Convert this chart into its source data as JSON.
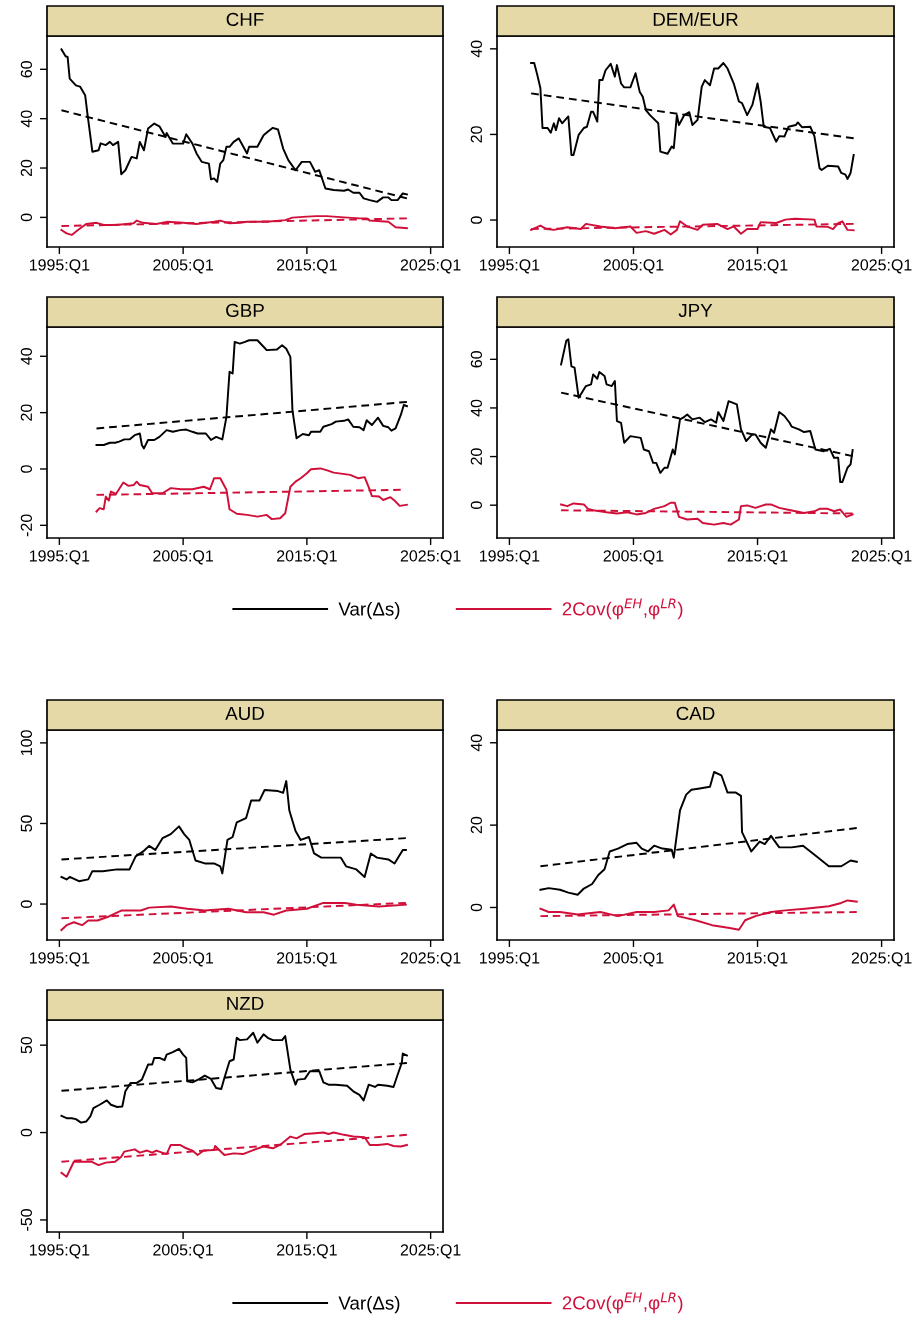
{
  "chart_data": [
    {
      "type": "line",
      "title": "CHF",
      "xlim": [
        "1994-01",
        "2026-01"
      ],
      "xticks": [
        {
          "value": "1995-01",
          "label": "1995:Q1"
        },
        {
          "value": "2005-01",
          "label": "2005:Q1"
        },
        {
          "value": "2015-01",
          "label": "2015:Q1"
        },
        {
          "value": "2025-01",
          "label": "2025:Q1"
        }
      ],
      "ylim": [
        -12,
        73.5
      ],
      "yticks": [
        0,
        20,
        40,
        60
      ],
      "series": [
        {
          "color": "#000000",
          "x": [
            "1995-03",
            "1995-07",
            "1995-09",
            "1995-11",
            "1996-05",
            "1996-09",
            "1997-02",
            "1997-04",
            "1997-09",
            "1998-03",
            "1998-05",
            "1998-10",
            "1999-02",
            "1999-05",
            "1999-10",
            "2000-01",
            "2000-05",
            "2000-11",
            "2001-04",
            "2001-07",
            "2001-11",
            "2002-03",
            "2002-09",
            "2003-02",
            "2003-08",
            "2003-09",
            "2004-03",
            "2005-01",
            "2005-04",
            "2005-10",
            "2006-02",
            "2006-07",
            "2007-02",
            "2007-04",
            "2007-07",
            "2007-10",
            "2008-01",
            "2008-04",
            "2008-07",
            "2008-10",
            "2009-02",
            "2009-07",
            "2010-03",
            "2010-05",
            "2011-01",
            "2011-07",
            "2011-11",
            "2012-04",
            "2012-09",
            "2013-02",
            "2013-07",
            "2014-02",
            "2014-08",
            "2015-04",
            "2015-09",
            "2016-01",
            "2016-07",
            "2017-03",
            "2018-01",
            "2018-05",
            "2018-10",
            "2019-04",
            "2019-08",
            "2020-02",
            "2020-09",
            "2021-03",
            "2021-08",
            "2021-11",
            "2022-05",
            "2022-10",
            "2023-02"
          ],
          "values": [
            68.1,
            65.3,
            65,
            56.2,
            53.5,
            53,
            49.5,
            42.7,
            26.6,
            27.2,
            30,
            29.3,
            30.6,
            29.3,
            30.6,
            17.5,
            19.1,
            24.5,
            23.9,
            30.6,
            27.2,
            36,
            38,
            36.9,
            32.6,
            34.2,
            29.9,
            29.9,
            33.7,
            29.9,
            25.9,
            22.5,
            21.8,
            15.4,
            15.8,
            14.4,
            21.8,
            23.2,
            28.6,
            28.6,
            30.6,
            32,
            25.9,
            28.6,
            28.6,
            33.3,
            34.7,
            36.3,
            35.6,
            27.9,
            23.2,
            19.1,
            22.5,
            22.5,
            18.5,
            19.1,
            11.7,
            11.1,
            10.8,
            11.3,
            10,
            10,
            7.7,
            7,
            6.3,
            8.1,
            8.1,
            7,
            7,
            9.7,
            9.3
          ]
        },
        {
          "color": "#d0103a",
          "x": [
            "1995-03",
            "1995-08",
            "1996-01",
            "1996-07",
            "1997-03",
            "1998-01",
            "1998-08",
            "1999-08",
            "2001-01",
            "2001-04",
            "2001-10",
            "2002-11",
            "2003-09",
            "2005-01",
            "2006-02",
            "2007-07",
            "2008-01",
            "2008-10",
            "2009-08",
            "2010-03",
            "2011-10",
            "2013-04",
            "2013-11",
            "2015-01",
            "2015-10",
            "2016-08",
            "2018-01",
            "2019-04",
            "2019-11",
            "2020-02",
            "2021-08",
            "2022-03",
            "2023-02"
          ],
          "values": [
            -5.1,
            -6.5,
            -7.1,
            -5.1,
            -2.7,
            -2.2,
            -3.1,
            -3.1,
            -2.4,
            -1.3,
            -2.2,
            -2.7,
            -1.8,
            -2.2,
            -2.7,
            -1.8,
            -1.3,
            -2.4,
            -2.2,
            -1.8,
            -1.8,
            -1.1,
            -0.1,
            0.3,
            0.5,
            0.5,
            0,
            -0.4,
            -0.4,
            -1.3,
            -1.8,
            -4,
            -4.4
          ]
        },
        {
          "color": "#000000",
          "line_style": "dashed",
          "x": [
            "1995-03",
            "2023-02"
          ],
          "values": [
            43.4,
            7.7
          ]
        },
        {
          "color": "#d0103a",
          "line_style": "dashed",
          "x": [
            "1995-03",
            "2023-02"
          ],
          "values": [
            -3.5,
            -0.4
          ]
        }
      ]
    },
    {
      "type": "line",
      "title": "DEM/EUR",
      "xlim": [
        "1994-01",
        "2026-01"
      ],
      "xticks": [
        {
          "value": "1995-01",
          "label": "1995:Q1"
        },
        {
          "value": "2005-01",
          "label": "2005:Q1"
        },
        {
          "value": "2015-01",
          "label": "2015:Q1"
        },
        {
          "value": "2025-01",
          "label": "2025:Q1"
        }
      ],
      "ylim": [
        -6.3,
        43
      ],
      "yticks": [
        0,
        20,
        40
      ],
      "series": [
        {
          "color": "#000000",
          "x": [
            "1996-10",
            "1997-01",
            "1997-04",
            "1997-07",
            "1997-09",
            "1998-02",
            "1998-05",
            "1998-08",
            "1998-10",
            "1999-01",
            "1999-04",
            "1999-10",
            "2000-01",
            "2000-03",
            "2000-08",
            "2001-01",
            "2001-04",
            "2001-08",
            "2001-10",
            "2002-02",
            "2002-04",
            "2002-07",
            "2002-10",
            "2003-03",
            "2003-07",
            "2003-09",
            "2004-01",
            "2004-04",
            "2004-10",
            "2005-03",
            "2005-07",
            "2005-10",
            "2006-01",
            "2006-05",
            "2007-01",
            "2007-03",
            "2007-10",
            "2008-02",
            "2008-04",
            "2008-07",
            "2008-09",
            "2009-02",
            "2009-07",
            "2009-10",
            "2010-03",
            "2010-07",
            "2010-10",
            "2011-03",
            "2011-07",
            "2011-11",
            "2012-04",
            "2012-08",
            "2013-02",
            "2013-07",
            "2013-10",
            "2014-03",
            "2014-08",
            "2015-01",
            "2015-04",
            "2015-07",
            "2016-01",
            "2016-07",
            "2016-10",
            "2017-03",
            "2017-07",
            "2018-02",
            "2018-04",
            "2018-08",
            "2019-04",
            "2019-08",
            "2020-01",
            "2020-03",
            "2020-09",
            "2021-07",
            "2021-10",
            "2022-02",
            "2022-04",
            "2022-07",
            "2022-10"
          ],
          "values": [
            36.7,
            36.7,
            33.9,
            30.8,
            21.5,
            21.5,
            20.4,
            22.6,
            21,
            23.8,
            22.6,
            24.2,
            15.2,
            15.2,
            19.9,
            21.5,
            21.8,
            25.3,
            25.3,
            23,
            32.7,
            32.7,
            35,
            36.5,
            33.5,
            36.2,
            31.9,
            31,
            31,
            34.3,
            30,
            28.8,
            25.7,
            24.5,
            22.6,
            16,
            15.5,
            17.2,
            16.8,
            24.5,
            22.2,
            24.5,
            25.2,
            22.2,
            23.4,
            31.1,
            32.7,
            31.5,
            35.4,
            35.4,
            36.7,
            35.4,
            31.9,
            27.7,
            27.3,
            24.5,
            26.9,
            31.9,
            27.7,
            21.8,
            21.5,
            18.3,
            19.6,
            19.5,
            21.8,
            22.2,
            22.8,
            21.7,
            21.8,
            19.6,
            12.1,
            11.7,
            12.7,
            12.5,
            11,
            10.6,
            9.6,
            11,
            15.2
          ]
        },
        {
          "color": "#d0103a",
          "x": [
            "1996-10",
            "1997-07",
            "1998-01",
            "1998-08",
            "1999-09",
            "2000-10",
            "2001-03",
            "2002-05",
            "2003-07",
            "2004-10",
            "2005-04",
            "2006-01",
            "2006-09",
            "2007-07",
            "2008-01",
            "2008-07",
            "2008-10",
            "2009-05",
            "2010-03",
            "2010-08",
            "2011-10",
            "2012-08",
            "2013-02",
            "2013-09",
            "2014-03",
            "2015-01",
            "2015-04",
            "2016-07",
            "2017-04",
            "2018-01",
            "2019-08",
            "2019-10",
            "2020-09",
            "2021-02",
            "2021-07",
            "2021-11",
            "2022-04",
            "2022-10"
          ],
          "values": [
            -2.3,
            -1.3,
            -2.1,
            -2.3,
            -1.7,
            -2.1,
            -0.9,
            -1.5,
            -1.9,
            -1.5,
            -3,
            -2.6,
            -3.2,
            -2.3,
            -3.4,
            -2.3,
            -0.3,
            -1.5,
            -2.3,
            -1.1,
            -0.9,
            -2.1,
            -1.5,
            -3.2,
            -2.1,
            -2.1,
            -0.5,
            -0.7,
            0.1,
            0.3,
            0.1,
            -1.5,
            -1.6,
            -2.1,
            -0.7,
            -0.3,
            -2.3,
            -2.4
          ]
        },
        {
          "color": "#000000",
          "line_style": "dashed",
          "x": [
            "1996-10",
            "2022-10"
          ],
          "values": [
            29.6,
            19.1
          ]
        },
        {
          "color": "#d0103a",
          "line_style": "dashed",
          "x": [
            "1996-10",
            "2022-10"
          ],
          "values": [
            -2.1,
            -0.9
          ]
        }
      ]
    },
    {
      "type": "line",
      "title": "GBP",
      "xlim": [
        "1994-01",
        "2026-01"
      ],
      "xticks": [
        {
          "value": "1995-01",
          "label": "1995:Q1"
        },
        {
          "value": "2005-01",
          "label": "2005:Q1"
        },
        {
          "value": "2015-01",
          "label": "2015:Q1"
        },
        {
          "value": "2025-01",
          "label": "2025:Q1"
        }
      ],
      "ylim": [
        -24.5,
        50.4
      ],
      "yticks": [
        -20,
        0,
        20,
        40
      ],
      "series": [
        {
          "color": "#000000",
          "x": [
            "1998-01",
            "1998-08",
            "1999-02",
            "1999-07",
            "1999-11",
            "2000-04",
            "2000-09",
            "2001-02",
            "2001-07",
            "2001-09",
            "2001-11",
            "2002-03",
            "2002-09",
            "2003-02",
            "2003-09",
            "2004-03",
            "2004-10",
            "2005-04",
            "2005-10",
            "2006-03",
            "2006-11",
            "2007-04",
            "2007-09",
            "2008-03",
            "2008-07",
            "2008-10",
            "2009-01",
            "2009-03",
            "2009-08",
            "2010-01",
            "2010-05",
            "2011-01",
            "2011-07",
            "2011-10",
            "2012-08",
            "2013-01",
            "2013-05",
            "2013-09",
            "2013-11",
            "2014-03",
            "2014-09",
            "2015-03",
            "2015-05",
            "2016-02",
            "2016-05",
            "2017-01",
            "2017-05",
            "2018-01",
            "2018-05",
            "2018-10",
            "2019-04",
            "2019-08",
            "2019-11",
            "2020-04",
            "2020-10",
            "2021-03",
            "2021-08",
            "2021-11",
            "2022-03",
            "2022-08",
            "2022-11",
            "2023-02"
          ],
          "values": [
            8.5,
            8.5,
            9.3,
            9.3,
            9.7,
            10.5,
            10.5,
            12,
            12.6,
            8.5,
            7.3,
            10.3,
            10.3,
            11.4,
            13.8,
            13.2,
            13.8,
            14,
            13.2,
            12.6,
            12.6,
            10.3,
            11.4,
            10.5,
            18.5,
            34.5,
            33.9,
            45.1,
            44.5,
            45.1,
            45.7,
            45.7,
            43.4,
            42.2,
            42.4,
            43.9,
            42.7,
            39.8,
            20.9,
            10.9,
            12.4,
            12,
            13.2,
            13.2,
            15,
            15.9,
            16.8,
            17.1,
            17.6,
            15,
            14.8,
            13.8,
            17.3,
            15.6,
            18.2,
            15.3,
            14.8,
            13.6,
            14.4,
            19.1,
            22.7,
            22.3
          ]
        },
        {
          "color": "#d0103a",
          "x": [
            "1998-01",
            "1998-04",
            "1998-08",
            "1998-10",
            "1999-01",
            "1999-03",
            "1999-08",
            "2000-03",
            "2000-08",
            "2001-01",
            "2001-04",
            "2001-07",
            "2002-03",
            "2002-07",
            "2003-05",
            "2004-01",
            "2004-11",
            "2005-10",
            "2006-09",
            "2007-03",
            "2007-07",
            "2008-01",
            "2008-07",
            "2008-10",
            "2009-05",
            "2010-03",
            "2011-01",
            "2011-10",
            "2012-03",
            "2012-11",
            "2013-04",
            "2013-09",
            "2014-02",
            "2014-07",
            "2015-01",
            "2015-05",
            "2016-02",
            "2016-08",
            "2017-03",
            "2018-07",
            "2019-03",
            "2019-09",
            "2020-02",
            "2020-04",
            "2020-11",
            "2021-03",
            "2021-10",
            "2022-02",
            "2022-07",
            "2023-02"
          ],
          "values": [
            -15.1,
            -13.9,
            -14.3,
            -9.8,
            -11.2,
            -8,
            -8.8,
            -4.8,
            -6,
            -5.7,
            -4.5,
            -5.7,
            -6.3,
            -8.6,
            -8.6,
            -6.8,
            -7.2,
            -7.2,
            -6.3,
            -7.2,
            -3.3,
            -3.3,
            -7.4,
            -14.3,
            -15.9,
            -16.3,
            -16.9,
            -16.3,
            -17.8,
            -17.5,
            -15.7,
            -6.3,
            -4.5,
            -3.3,
            -1.5,
            -0.1,
            0.2,
            -0.4,
            -1.3,
            -2.1,
            -3.3,
            -2.9,
            -7.4,
            -9.6,
            -9.8,
            -11,
            -10,
            -11.2,
            -13.1,
            -12.7
          ]
        },
        {
          "color": "#000000",
          "line_style": "dashed",
          "x": [
            "1998-01",
            "2023-02"
          ],
          "values": [
            14.4,
            23.8
          ]
        },
        {
          "color": "#d0103a",
          "line_style": "dashed",
          "x": [
            "1998-01",
            "2022-08"
          ],
          "values": [
            -9.2,
            -7.4
          ]
        }
      ]
    },
    {
      "type": "line",
      "title": "JPY",
      "xlim": [
        "1994-01",
        "2026-01"
      ],
      "xticks": [
        {
          "value": "1995-01",
          "label": "1995:Q1"
        },
        {
          "value": "2005-01",
          "label": "2005:Q1"
        },
        {
          "value": "2015-01",
          "label": "2015:Q1"
        },
        {
          "value": "2025-01",
          "label": "2025:Q1"
        }
      ],
      "ylim": [
        -13.5,
        73.3
      ],
      "yticks": [
        0,
        20,
        40,
        60
      ],
      "legend": "bottom",
      "series": [
        {
          "name": "Var(Δs)",
          "color": "#000000",
          "x": [
            "1999-03",
            "1999-08",
            "1999-10",
            "2000-01",
            "2000-04",
            "2000-08",
            "2000-11",
            "2001-03",
            "2001-08",
            "2001-10",
            "2002-02",
            "2002-04",
            "2002-09",
            "2002-11",
            "2003-04",
            "2003-07",
            "2003-09",
            "2004-01",
            "2004-04",
            "2004-10",
            "2005-08",
            "2005-11",
            "2006-04",
            "2006-08",
            "2006-11",
            "2007-03",
            "2007-07",
            "2007-10",
            "2008-03",
            "2008-05",
            "2008-10",
            "2009-01",
            "2009-05",
            "2009-10",
            "2010-05",
            "2010-10",
            "2011-04",
            "2011-09",
            "2011-11",
            "2012-04",
            "2012-09",
            "2013-05",
            "2013-09",
            "2014-02",
            "2014-08",
            "2014-11",
            "2015-04",
            "2015-09",
            "2016-02",
            "2016-05",
            "2016-10",
            "2017-03",
            "2017-08",
            "2017-10",
            "2018-05",
            "2018-10",
            "2019-04",
            "2019-09",
            "2020-05",
            "2020-11",
            "2021-03",
            "2021-07",
            "2021-09",
            "2021-11",
            "2022-04",
            "2022-07",
            "2022-09"
          ],
          "values": [
            57.9,
            67.6,
            68.2,
            57.1,
            56.6,
            44.2,
            46.3,
            49,
            49.7,
            53.8,
            52,
            54.8,
            53.1,
            49.7,
            49,
            51.1,
            34.6,
            33.9,
            25.7,
            28.4,
            27.7,
            22.9,
            22.2,
            17.4,
            17.4,
            13.3,
            15.4,
            15.4,
            22.9,
            20.9,
            35.3,
            36,
            37.3,
            35.3,
            36,
            34.2,
            35.3,
            33.9,
            38.3,
            34.6,
            42.8,
            41.5,
            31.2,
            26.4,
            29.1,
            29.1,
            25.7,
            23.6,
            31.2,
            29.8,
            38.3,
            36.7,
            33.9,
            32.3,
            31.2,
            30.1,
            30.5,
            22.9,
            22.2,
            23.2,
            19.5,
            19.5,
            9.5,
            9.5,
            15.4,
            16.8,
            22.7
          ]
        },
        {
          "name": "2Cov(φ$^{EH}$,φ$^{LR}$)",
          "color": "#d0103a",
          "x": [
            "1999-03",
            "1999-09",
            "2000-03",
            "2001-01",
            "2001-05",
            "2001-10",
            "2002-11",
            "2003-09",
            "2004-07",
            "2005-04",
            "2006-01",
            "2006-09",
            "2007-07",
            "2008-01",
            "2008-05",
            "2008-09",
            "2009-05",
            "2010-03",
            "2010-08",
            "2011-07",
            "2012-04",
            "2012-11",
            "2013-07",
            "2013-09",
            "2014-03",
            "2014-11",
            "2015-09",
            "2016-02",
            "2016-10",
            "2017-09",
            "2018-10",
            "2019-08",
            "2020-01",
            "2020-09",
            "2021-03",
            "2021-09",
            "2022-03",
            "2022-09"
          ],
          "values": [
            0.3,
            -0.4,
            0.7,
            0.3,
            -1.5,
            -2.1,
            -2.9,
            -3.4,
            -2.9,
            -3.8,
            -3.2,
            -1.5,
            -0.4,
            1,
            1,
            -4.8,
            -5.9,
            -5.6,
            -7.3,
            -8,
            -7.3,
            -8,
            -5.9,
            -0.4,
            -0.1,
            -1.1,
            0.3,
            0.3,
            -1.1,
            -2.1,
            -3.2,
            -2.5,
            -1.5,
            -1.5,
            -2.5,
            -1.8,
            -4.8,
            -3.8
          ]
        },
        {
          "color": "#000000",
          "line_style": "dashed",
          "x": [
            "1999-03",
            "2022-09"
          ],
          "values": [
            46.3,
            20.2
          ]
        },
        {
          "color": "#d0103a",
          "line_style": "dashed",
          "x": [
            "1999-03",
            "2022-09"
          ],
          "values": [
            -2.1,
            -3.4
          ]
        }
      ]
    },
    {
      "type": "line",
      "title": "AUD",
      "xlim": [
        "1994-01",
        "2026-01"
      ],
      "xticks": [
        {
          "value": "1995-01",
          "label": "1995:Q1"
        },
        {
          "value": "2005-01",
          "label": "2005:Q1"
        },
        {
          "value": "2015-01",
          "label": "2015:Q1"
        },
        {
          "value": "2025-01",
          "label": "2025:Q1"
        }
      ],
      "ylim": [
        -22.3,
        108
      ],
      "yticks": [
        0,
        50,
        100
      ],
      "series": [
        {
          "color": "#000000",
          "x": [
            "1995-03",
            "1995-08",
            "1995-11",
            "1996-08",
            "1997-05",
            "1997-09",
            "1998-07",
            "1999-09",
            "2000-09",
            "2001-03",
            "2001-10",
            "2002-04",
            "2002-10",
            "2003-05",
            "2004-01",
            "2004-09",
            "2005-02",
            "2005-07",
            "2006-01",
            "2006-10",
            "2007-07",
            "2008-01",
            "2008-03",
            "2008-08",
            "2009-01",
            "2009-05",
            "2010-02",
            "2010-07",
            "2011-03",
            "2011-08",
            "2012-09",
            "2013-02",
            "2013-05",
            "2013-08",
            "2014-02",
            "2014-07",
            "2015-03",
            "2015-08",
            "2016-03",
            "2016-11",
            "2017-10",
            "2018-03",
            "2019-01",
            "2019-09",
            "2020-03",
            "2020-09",
            "2021-08",
            "2022-02",
            "2022-10",
            "2023-01"
          ],
          "values": [
            16.8,
            15.3,
            16.8,
            14.2,
            15.3,
            20.4,
            20.4,
            21.5,
            21.5,
            29.6,
            32.5,
            36.1,
            33.6,
            40.9,
            43.4,
            48.2,
            43.4,
            39.8,
            27,
            25.2,
            25.2,
            23.4,
            19,
            39.8,
            41.6,
            50.7,
            53.3,
            64.2,
            64.2,
            70.8,
            70.1,
            69,
            76.3,
            58,
            45.3,
            39.8,
            41.6,
            31.4,
            28.8,
            28.8,
            28.8,
            23.4,
            21.5,
            16.8,
            31.4,
            28.8,
            27.7,
            25.2,
            33.6,
            33.6
          ]
        },
        {
          "color": "#d0103a",
          "x": [
            "1995-03",
            "1995-08",
            "1996-03",
            "1996-11",
            "1997-05",
            "1998-02",
            "1999-01",
            "2000-01",
            "2001-08",
            "2002-04",
            "2004-01",
            "2005-05",
            "2006-10",
            "2008-09",
            "2010-02",
            "2011-07",
            "2012-05",
            "2013-05",
            "2015-01",
            "2016-05",
            "2018-02",
            "2019-01",
            "2020-11",
            "2023-01"
          ],
          "values": [
            -16.1,
            -13.1,
            -11.3,
            -13.1,
            -10.2,
            -10.2,
            -7.7,
            -4,
            -4,
            -2.2,
            -1.5,
            -2.9,
            -4,
            -2.9,
            -5.1,
            -5.1,
            -6.6,
            -4,
            -2.9,
            0.7,
            0.7,
            -0.4,
            -1.5,
            -0.4
          ]
        },
        {
          "color": "#000000",
          "line_style": "dashed",
          "x": [
            "1995-03",
            "2023-01"
          ],
          "values": [
            27.7,
            40.9
          ]
        },
        {
          "color": "#d0103a",
          "line_style": "dashed",
          "x": [
            "1995-03",
            "2023-01"
          ],
          "values": [
            -8.8,
            0.7
          ]
        }
      ]
    },
    {
      "type": "line",
      "title": "CAD",
      "xlim": [
        "1994-01",
        "2026-01"
      ],
      "xticks": [
        {
          "value": "1995-01",
          "label": "1995:Q1"
        },
        {
          "value": "2005-01",
          "label": "2005:Q1"
        },
        {
          "value": "2015-01",
          "label": "2015:Q1"
        },
        {
          "value": "2025-01",
          "label": "2025:Q1"
        }
      ],
      "ylim": [
        -7.9,
        43.1
      ],
      "yticks": [
        0,
        20,
        40
      ],
      "series": [
        {
          "color": "#000000",
          "x": [
            "1997-07",
            "1998-03",
            "1999-02",
            "1999-10",
            "2000-07",
            "2001-01",
            "2001-09",
            "2002-03",
            "2002-09",
            "2003-02",
            "2003-10",
            "2004-07",
            "2005-04",
            "2005-09",
            "2006-03",
            "2006-09",
            "2007-05",
            "2008-02",
            "2008-04",
            "2008-10",
            "2009-04",
            "2009-09",
            "2010-05",
            "2011-03",
            "2011-07",
            "2012-02",
            "2012-08",
            "2013-04",
            "2013-09",
            "2013-10",
            "2014-07",
            "2015-03",
            "2015-08",
            "2016-02",
            "2016-10",
            "2017-10",
            "2018-09",
            "2019-09",
            "2020-10",
            "2021-10",
            "2022-07",
            "2023-01"
          ],
          "values": [
            4.3,
            4.7,
            4.3,
            3.6,
            3.1,
            4.6,
            5.7,
            7.9,
            9.3,
            13.6,
            14.3,
            15.4,
            15.7,
            14.3,
            13.6,
            15,
            14.3,
            14,
            12.1,
            23.6,
            27.4,
            28.6,
            28.9,
            29.3,
            32.9,
            32.1,
            27.9,
            27.9,
            27.1,
            18.3,
            13.6,
            16,
            15.4,
            17.4,
            14.6,
            14.6,
            15,
            12.6,
            10,
            10,
            11.4,
            11.1
          ]
        },
        {
          "color": "#d0103a",
          "x": [
            "1997-07",
            "1998-03",
            "1999-02",
            "2000-07",
            "2002-05",
            "2003-10",
            "2005-04",
            "2006-09",
            "2007-11",
            "2008-04",
            "2008-08",
            "2010-01",
            "2011-05",
            "2012-10",
            "2013-07",
            "2014-01",
            "2014-11",
            "2016-02",
            "2017-04",
            "2018-11",
            "2020-10",
            "2021-10",
            "2022-04",
            "2023-01"
          ],
          "values": [
            -0.3,
            -1.1,
            -1.1,
            -1.7,
            -1.1,
            -2.1,
            -1.1,
            -1.1,
            -0.7,
            0.7,
            -2.1,
            -3.1,
            -4.3,
            -5,
            -5.4,
            -3.1,
            -2.1,
            -1.1,
            -0.7,
            -0.3,
            0.3,
            1.1,
            1.7,
            1.4
          ]
        },
        {
          "color": "#000000",
          "line_style": "dashed",
          "x": [
            "1997-07",
            "2023-01"
          ],
          "values": [
            10,
            19.3
          ]
        },
        {
          "color": "#d0103a",
          "line_style": "dashed",
          "x": [
            "1997-07",
            "2023-01"
          ],
          "values": [
            -2.1,
            -1.1
          ]
        }
      ]
    },
    {
      "type": "line",
      "title": "NZD",
      "xlim": [
        "1994-01",
        "2026-01"
      ],
      "xticks": [
        {
          "value": "1995-01",
          "label": "1995:Q1"
        },
        {
          "value": "2005-01",
          "label": "2005:Q1"
        },
        {
          "value": "2015-01",
          "label": "2015:Q1"
        },
        {
          "value": "2025-01",
          "label": "2025:Q1"
        }
      ],
      "ylim": [
        -56.9,
        64.4
      ],
      "yticks": [
        -50,
        0,
        50
      ],
      "legend": "bottom",
      "series": [
        {
          "name": "Var(Δs)",
          "color": "#000000",
          "x": [
            "1995-03",
            "1995-08",
            "1996-01",
            "1996-05",
            "1996-10",
            "1997-03",
            "1997-07",
            "1997-10",
            "1998-04",
            "1998-11",
            "1999-03",
            "1999-09",
            "2000-02",
            "2000-05",
            "2000-10",
            "2001-04",
            "2001-09",
            "2002-03",
            "2002-07",
            "2002-09",
            "2003-02",
            "2003-07",
            "2003-09",
            "2004-03",
            "2004-09",
            "2005-01",
            "2005-04",
            "2005-05",
            "2005-10",
            "2006-05",
            "2006-10",
            "2007-04",
            "2007-09",
            "2008-02",
            "2008-05",
            "2008-10",
            "2009-02",
            "2009-05",
            "2009-08",
            "2010-03",
            "2010-09",
            "2011-01",
            "2011-07",
            "2011-11",
            "2012-04",
            "2013-01",
            "2013-04",
            "2013-09",
            "2014-02",
            "2014-04",
            "2014-11",
            "2015-04",
            "2016-01",
            "2016-05",
            "2016-10",
            "2017-05",
            "2018-04",
            "2018-10",
            "2019-04",
            "2019-08",
            "2020-01",
            "2020-07",
            "2020-10",
            "2021-07",
            "2022-01",
            "2022-05",
            "2022-09",
            "2022-10",
            "2023-02"
          ],
          "values": [
            9.6,
            8.2,
            8.2,
            7.7,
            5.7,
            6.3,
            9.2,
            14,
            15.9,
            18.4,
            15.9,
            14.6,
            14.9,
            23.6,
            28.4,
            28.4,
            30.3,
            38.9,
            38.9,
            42.7,
            42.7,
            41.4,
            44.6,
            46,
            47.9,
            44.6,
            42.7,
            29.3,
            28.7,
            30.7,
            32.6,
            30.7,
            25.5,
            24.9,
            31.2,
            40.8,
            41.8,
            54.2,
            52.9,
            53.3,
            57.1,
            51.4,
            56.2,
            54.2,
            52.9,
            52.9,
            55.2,
            36,
            27.4,
            30.3,
            30.7,
            35.1,
            35.1,
            28.7,
            27.4,
            27.4,
            26.8,
            23.6,
            21.6,
            18.4,
            27.4,
            26.1,
            27.4,
            26.8,
            26.1,
            33.1,
            39.8,
            45.2,
            44.1
          ]
        },
        {
          "name": "2Cov(φ$^{EH}$,φ$^{LR}$)",
          "color": "#d0103a",
          "x": [
            "1995-03",
            "1995-08",
            "1996-03",
            "1996-09",
            "1997-03",
            "1997-08",
            "1998-03",
            "1998-10",
            "1999-07",
            "2000-01",
            "2000-04",
            "2001-02",
            "2001-07",
            "2002-02",
            "2002-07",
            "2002-11",
            "2003-09",
            "2004-01",
            "2004-10",
            "2005-04",
            "2005-10",
            "2006-03",
            "2006-09",
            "2007-07",
            "2007-08",
            "2008-05",
            "2009-02",
            "2009-11",
            "2010-09",
            "2011-07",
            "2012-04",
            "2012-11",
            "2013-09",
            "2014-03",
            "2014-11",
            "2015-09",
            "2016-05",
            "2016-10",
            "2017-03",
            "2018-01",
            "2018-10",
            "2019-09",
            "2020-02",
            "2020-10",
            "2021-07",
            "2022-01",
            "2022-08",
            "2023-02"
          ],
          "values": [
            -23,
            -25.3,
            -16.7,
            -16.7,
            -16.7,
            -16.7,
            -18.6,
            -17.2,
            -16.7,
            -13.8,
            -10.9,
            -9.6,
            -11.5,
            -10.3,
            -11.5,
            -10.3,
            -12.3,
            -7.1,
            -7.1,
            -9,
            -10.3,
            -12.8,
            -10.3,
            -10,
            -7.7,
            -12.8,
            -11.9,
            -12.3,
            -10,
            -8,
            -9,
            -7.1,
            -2.3,
            -3.3,
            -0.8,
            -0.4,
            0,
            -0.8,
            0,
            -1.3,
            -2.3,
            -2.7,
            -7.1,
            -7.1,
            -6.5,
            -7.7,
            -8,
            -7.1
          ]
        },
        {
          "color": "#000000",
          "line_style": "dashed",
          "x": [
            "1995-03",
            "2023-02"
          ],
          "values": [
            23.9,
            39.8
          ]
        },
        {
          "color": "#d0103a",
          "line_style": "dashed",
          "x": [
            "1995-03",
            "2023-02"
          ],
          "values": [
            -16.7,
            -1.3
          ]
        }
      ]
    }
  ]
}
